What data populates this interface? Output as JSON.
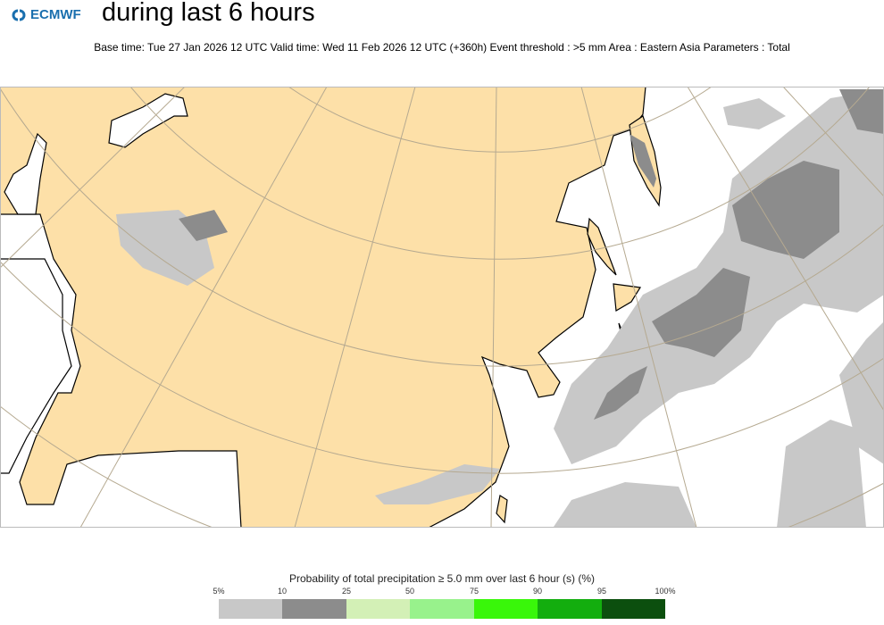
{
  "header": {
    "logo_text": "ECMWF",
    "title": "during last 6 hours",
    "subtitle": "Base time: Tue 27 Jan 2026 12 UTC Valid time: Wed 11 Feb 2026 12 UTC (+360h) Event threshold : >5 mm Area : Eastern Asia Parameters : Total"
  },
  "map": {
    "area": "Eastern Asia",
    "colors": {
      "land": "#fde0a8",
      "ocean": "#ffffff",
      "coast": "#000000",
      "graticule": "#b5a990"
    }
  },
  "legend": {
    "title": "Probability of total precipitation ≥ 5.0 mm over last 6 hour (s) (%)",
    "ticks": [
      "5%",
      "10",
      "25",
      "50",
      "75",
      "90",
      "95",
      "100%"
    ],
    "colors": [
      "#c8c8c8",
      "#8c8c8c",
      "#d3f0b6",
      "#98f28c",
      "#39f70a",
      "#13ae0e",
      "#0c4f0e"
    ]
  }
}
